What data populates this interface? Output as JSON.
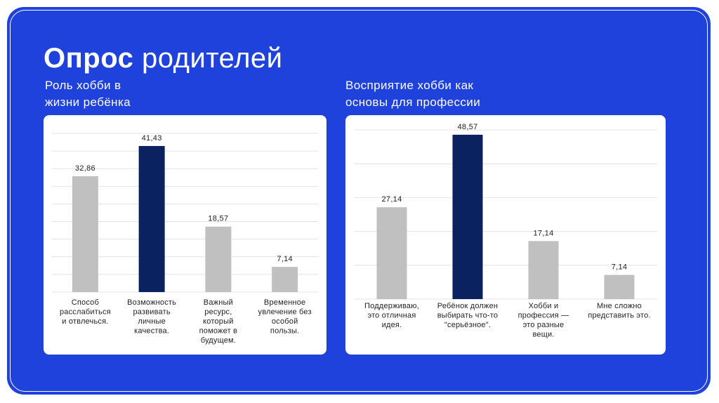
{
  "slide": {
    "title_bold": "Опрос",
    "title_rest": "родителей",
    "colors": {
      "background": "#1f41dc",
      "frame": "#ffffff",
      "panel": "#ffffff",
      "bar_default": "#c0c0c0",
      "bar_highlight": "#0b2160",
      "grid": "#e3e3e3"
    }
  },
  "chart_data": [
    {
      "type": "bar",
      "title": "Роль хобби в\nжизни ребёнка",
      "categories": [
        "Способ расслабиться и отвлечься.",
        "Возможность развивать личные качества.",
        "Важный ресурс, который поможет в будущем.",
        "Временное увлечение без особой пользы."
      ],
      "category_lines": [
        [
          "Способ",
          "расслабиться",
          "и отвлечься."
        ],
        [
          "Возможность",
          "развивать",
          "личные",
          "качества."
        ],
        [
          "Важный",
          "ресурс,",
          "который",
          "поможет в",
          "будущем."
        ],
        [
          "Временное",
          "увлечение без",
          "особой",
          "пользы."
        ]
      ],
      "values": [
        32.86,
        41.43,
        18.57,
        7.14
      ],
      "value_labels": [
        "32,86",
        "41,43",
        "18,57",
        "7,14"
      ],
      "highlight_index": 1,
      "ylim": [
        0,
        45
      ],
      "gridlines": 9,
      "grid": true,
      "xlabel": "",
      "ylabel": ""
    },
    {
      "type": "bar",
      "title": "Восприятие хобби как\nосновы для профессии",
      "categories": [
        "Поддерживаю, это отличная идея.",
        "Ребёнок должен выбирать что-то \"серьёзное\".",
        "Хобби и профессия — это разные вещи.",
        "Мне сложно представить это."
      ],
      "category_lines": [
        [
          "Поддерживаю,",
          "это отличная",
          "идея."
        ],
        [
          "Ребёнок должен",
          "выбирать что-то",
          "\"серьёзное\"."
        ],
        [
          "Хобби и",
          "профессия —",
          "это разные",
          "вещи."
        ],
        [
          "Мне сложно",
          "представить это."
        ]
      ],
      "values": [
        27.14,
        48.57,
        17.14,
        7.14
      ],
      "value_labels": [
        "27,14",
        "48,57",
        "17,14",
        "7,14"
      ],
      "highlight_index": 1,
      "ylim": [
        0,
        50
      ],
      "gridlines": 5,
      "grid": true,
      "xlabel": "",
      "ylabel": ""
    }
  ]
}
